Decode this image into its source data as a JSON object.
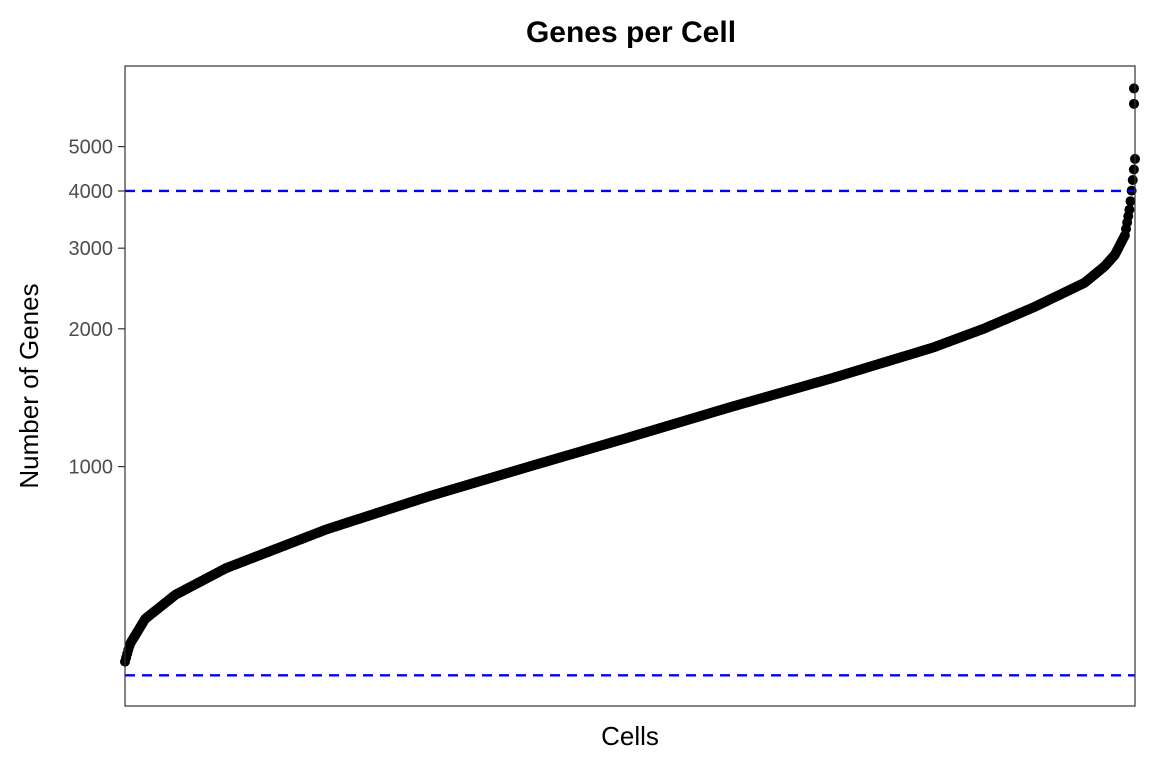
{
  "chart_data": {
    "type": "scatter",
    "title": "Genes per Cell",
    "xlabel": "Cells",
    "ylabel": "Number of Genes",
    "y_scale": "log10",
    "ylim": [
      300,
      7500
    ],
    "y_ticks": [
      1000,
      2000,
      3000,
      4000,
      5000
    ],
    "y_tick_labels": [
      "1000",
      "2000",
      "3000",
      "4000",
      "5000"
    ],
    "x_ticks_shown": false,
    "grid": false,
    "point_color": "#000000",
    "threshold_color": "#0000ff",
    "thresholds": [
      4000,
      350
    ],
    "ranked_curve": {
      "fraction": [
        0,
        0.005,
        0.02,
        0.05,
        0.1,
        0.2,
        0.3,
        0.4,
        0.5,
        0.6,
        0.7,
        0.8,
        0.85,
        0.9,
        0.95,
        0.97,
        0.98,
        0.99,
        0.995,
        1.0
      ],
      "genes": [
        375,
        410,
        465,
        525,
        600,
        730,
        860,
        1000,
        1160,
        1350,
        1560,
        1820,
        2000,
        2230,
        2520,
        2740,
        2900,
        3200,
        3700,
        4700
      ]
    },
    "outliers": [
      {
        "fraction": 0.999,
        "genes": 6200
      },
      {
        "fraction": 0.999,
        "genes": 6700
      }
    ]
  }
}
